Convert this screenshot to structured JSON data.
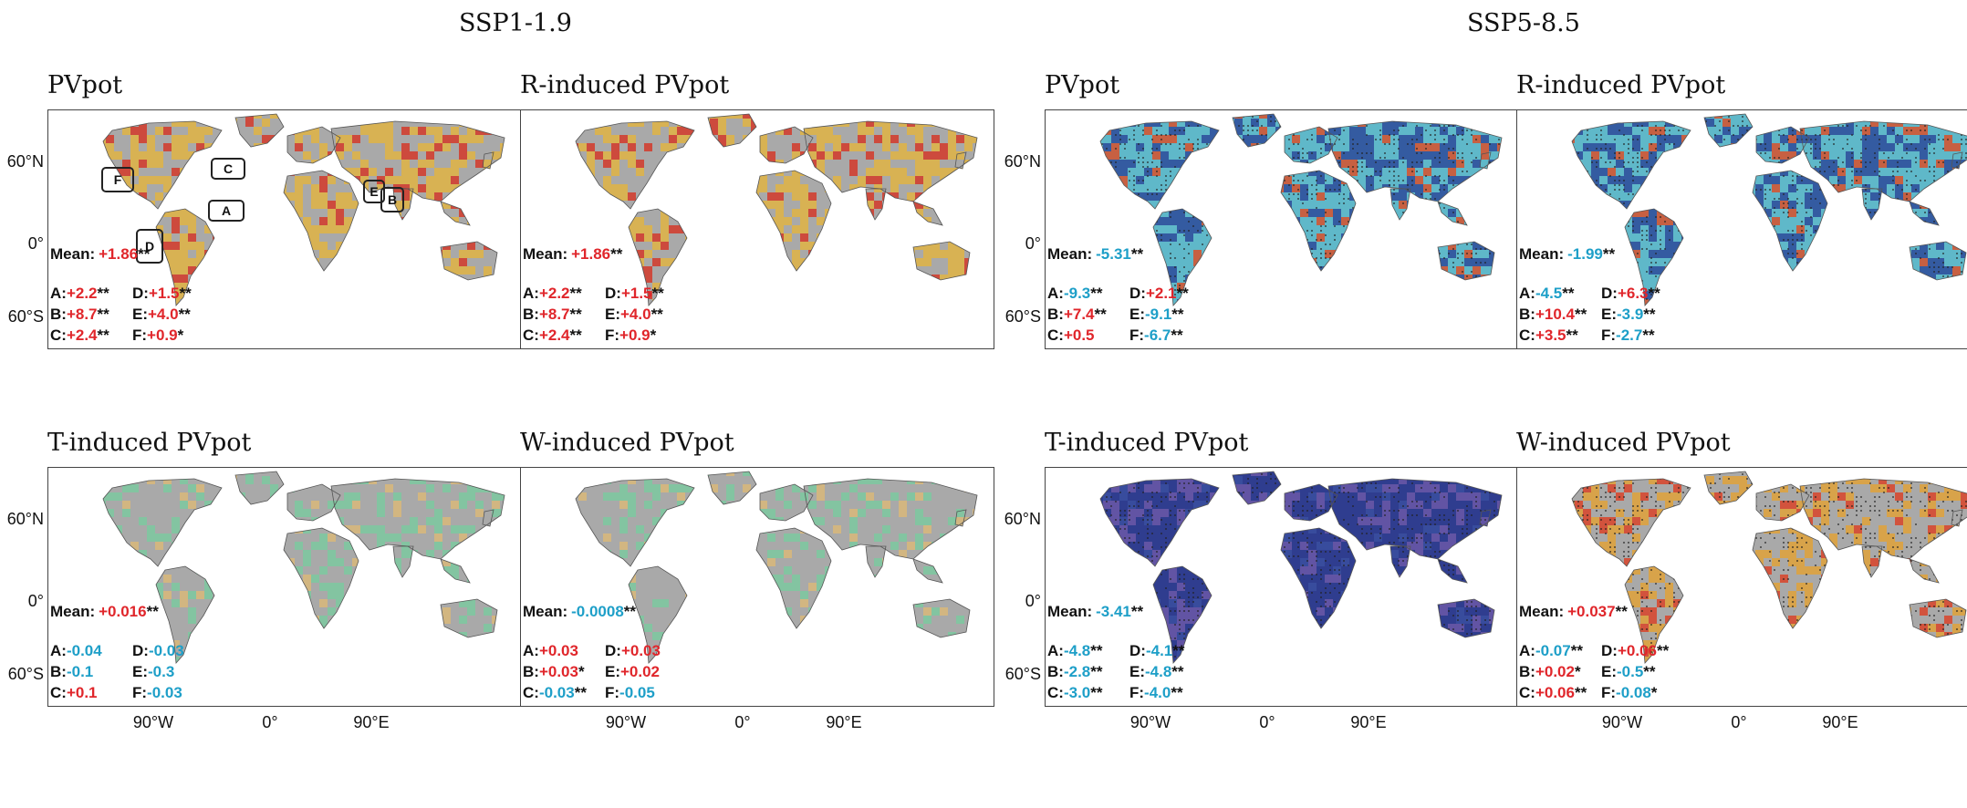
{
  "scenarios": [
    {
      "key": "ssp119",
      "label": "SSP1-1.9"
    },
    {
      "key": "ssp585",
      "label": "SSP5-8.5"
    }
  ],
  "axis": {
    "lat_labels": [
      "60°N",
      "0°",
      "60°S"
    ],
    "lon_labels": [
      "90°W",
      "0°",
      "90°E"
    ]
  },
  "regions": [
    "A",
    "B",
    "C",
    "D",
    "E",
    "F"
  ],
  "colors": {
    "positive": "#e0262b",
    "negative": "#1e9fc8",
    "land": "#a8a8a8"
  },
  "panels": [
    {
      "id": "p1",
      "scenario": "SSP1-1.9",
      "title": "PVpot",
      "mean_label": "Mean:",
      "mean_value": "+1.86",
      "mean_sig": "**",
      "stats": [
        [
          {
            "r": "A:",
            "v": "+2.2",
            "s": "**"
          },
          {
            "r": "D:",
            "v": "+1.5",
            "s": "**"
          }
        ],
        [
          {
            "r": "B:",
            "v": "+8.7",
            "s": "**"
          },
          {
            "r": "E:",
            "v": "+4.0",
            "s": "**"
          }
        ],
        [
          {
            "r": "C:",
            "v": "+2.4",
            "s": "**"
          },
          {
            "r": "F:",
            "v": "+0.9",
            "s": "*"
          }
        ]
      ],
      "show_regions": true
    },
    {
      "id": "p2",
      "scenario": "SSP1-1.9",
      "title": "R-induced PVpot",
      "mean_label": "Mean:",
      "mean_value": "+1.86",
      "mean_sig": "**",
      "stats": [
        [
          {
            "r": "A:",
            "v": "+2.2",
            "s": "**"
          },
          {
            "r": "D:",
            "v": "+1.5",
            "s": "**"
          }
        ],
        [
          {
            "r": "B:",
            "v": "+8.7",
            "s": "**"
          },
          {
            "r": "E:",
            "v": "+4.0",
            "s": "**"
          }
        ],
        [
          {
            "r": "C:",
            "v": "+2.4",
            "s": "**"
          },
          {
            "r": "F:",
            "v": "+0.9",
            "s": "*"
          }
        ]
      ]
    },
    {
      "id": "p3",
      "scenario": "SSP5-8.5",
      "title": "PVpot",
      "mean_label": "Mean:",
      "mean_value": "-5.31",
      "mean_sig": "**",
      "stats": [
        [
          {
            "r": "A:",
            "v": "-9.3",
            "s": "**"
          },
          {
            "r": "D:",
            "v": "+2.1",
            "s": "**"
          }
        ],
        [
          {
            "r": "B:",
            "v": "+7.4",
            "s": "**"
          },
          {
            "r": "E:",
            "v": "-9.1",
            "s": "**"
          }
        ],
        [
          {
            "r": "C:",
            "v": "+0.5",
            "s": ""
          },
          {
            "r": "F:",
            "v": "-6.7",
            "s": "**"
          }
        ]
      ]
    },
    {
      "id": "p4",
      "scenario": "SSP5-8.5",
      "title": "R-induced PVpot",
      "mean_label": "Mean:",
      "mean_value": "-1.99",
      "mean_sig": "**",
      "stats": [
        [
          {
            "r": "A:",
            "v": "-4.5",
            "s": "**"
          },
          {
            "r": "D:",
            "v": "+6.3",
            "s": "**"
          }
        ],
        [
          {
            "r": "B:",
            "v": "+10.4",
            "s": "**"
          },
          {
            "r": "E:",
            "v": "-3.9",
            "s": "**"
          }
        ],
        [
          {
            "r": "C:",
            "v": "+3.5",
            "s": "**"
          },
          {
            "r": "F:",
            "v": "-2.7",
            "s": "**"
          }
        ]
      ]
    },
    {
      "id": "p5",
      "scenario": "SSP1-1.9",
      "title": "T-induced PVpot",
      "mean_label": "Mean:",
      "mean_value": "+0.016",
      "mean_sig": "**",
      "stats": [
        [
          {
            "r": "A:",
            "v": "-0.04",
            "s": ""
          },
          {
            "r": "D:",
            "v": "-0.03",
            "s": ""
          }
        ],
        [
          {
            "r": "B:",
            "v": "-0.1",
            "s": ""
          },
          {
            "r": "E:",
            "v": "-0.3",
            "s": ""
          }
        ],
        [
          {
            "r": "C:",
            "v": "+0.1",
            "s": ""
          },
          {
            "r": "F:",
            "v": "-0.03",
            "s": ""
          }
        ]
      ]
    },
    {
      "id": "p6",
      "scenario": "SSP1-1.9",
      "title": "W-induced PVpot",
      "mean_label": "Mean:",
      "mean_value": "-0.0008",
      "mean_sig": "**",
      "stats": [
        [
          {
            "r": "A:",
            "v": "+0.03",
            "s": ""
          },
          {
            "r": "D:",
            "v": "+0.03",
            "s": ""
          }
        ],
        [
          {
            "r": "B:",
            "v": "+0.03",
            "s": "*"
          },
          {
            "r": "E:",
            "v": "+0.02",
            "s": ""
          }
        ],
        [
          {
            "r": "C:",
            "v": "-0.03",
            "s": "**"
          },
          {
            "r": "F:",
            "v": "-0.05",
            "s": ""
          }
        ]
      ]
    },
    {
      "id": "p7",
      "scenario": "SSP5-8.5",
      "title": "T-induced PVpot",
      "mean_label": "Mean:",
      "mean_value": "-3.41",
      "mean_sig": "**",
      "stats": [
        [
          {
            "r": "A:",
            "v": "-4.8",
            "s": "**"
          },
          {
            "r": "D:",
            "v": "-4.1",
            "s": "**"
          }
        ],
        [
          {
            "r": "B:",
            "v": "-2.8",
            "s": "**"
          },
          {
            "r": "E:",
            "v": "-4.8",
            "s": "**"
          }
        ],
        [
          {
            "r": "C:",
            "v": "-3.0",
            "s": "**"
          },
          {
            "r": "F:",
            "v": "-4.0",
            "s": "**"
          }
        ]
      ]
    },
    {
      "id": "p8",
      "scenario": "SSP5-8.5",
      "title": "W-induced PVpot",
      "mean_label": "Mean:",
      "mean_value": "+0.037",
      "mean_sig": "**",
      "stats": [
        [
          {
            "r": "A:",
            "v": "-0.07",
            "s": "**"
          },
          {
            "r": "D:",
            "v": "+0.06",
            "s": "**"
          }
        ],
        [
          {
            "r": "B:",
            "v": "+0.02",
            "s": "*"
          },
          {
            "r": "E:",
            "v": "-0.5",
            "s": "**"
          }
        ],
        [
          {
            "r": "C:",
            "v": "+0.06",
            "s": "**"
          },
          {
            "r": "F:",
            "v": "-0.08",
            "s": "*"
          }
        ]
      ]
    }
  ]
}
